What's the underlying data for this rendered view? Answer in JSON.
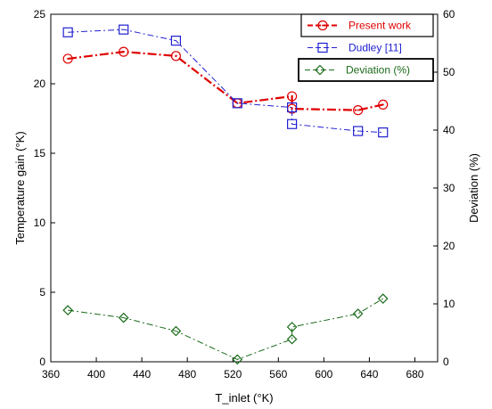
{
  "chart_data": {
    "type": "line",
    "xlabel": "T_inlet (°K)",
    "ylabel": "Temperature gain (°K)",
    "y2label": "Deviation (%)",
    "xlim": [
      360,
      700
    ],
    "ylim": [
      0,
      25
    ],
    "y2lim": [
      0,
      60
    ],
    "xticks": [
      360,
      400,
      440,
      480,
      520,
      560,
      600,
      640,
      680
    ],
    "yticks": [
      0,
      5,
      10,
      15,
      20,
      25
    ],
    "y2ticks": [
      0,
      10,
      20,
      30,
      40,
      50,
      60
    ],
    "grid": false,
    "legend_placement": "top-right",
    "series": [
      {
        "name": "Present work",
        "axis": "left",
        "color": "#e00000",
        "marker": "circle",
        "line": "dash-dot",
        "x": [
          375,
          424,
          470,
          524,
          572,
          572,
          630,
          652
        ],
        "y": [
          21.8,
          22.3,
          22.0,
          18.6,
          19.1,
          18.2,
          18.1,
          18.5
        ]
      },
      {
        "name": "Dudley [11]",
        "axis": "left",
        "color": "#2020d0",
        "marker": "square",
        "line": "dash-dot",
        "x": [
          375,
          424,
          470,
          524,
          572,
          572,
          630,
          652
        ],
        "y": [
          23.7,
          23.9,
          23.1,
          18.6,
          18.3,
          17.1,
          16.6,
          16.5
        ]
      },
      {
        "name": "Deviation (%)",
        "axis": "right",
        "color": "#1a6a1a",
        "marker": "diamond",
        "line": "dash-dot",
        "x": [
          375,
          424,
          470,
          524,
          572,
          572,
          630,
          652
        ],
        "y": [
          8.9,
          7.6,
          5.3,
          0.4,
          3.9,
          6.0,
          8.3,
          10.9
        ]
      }
    ]
  }
}
